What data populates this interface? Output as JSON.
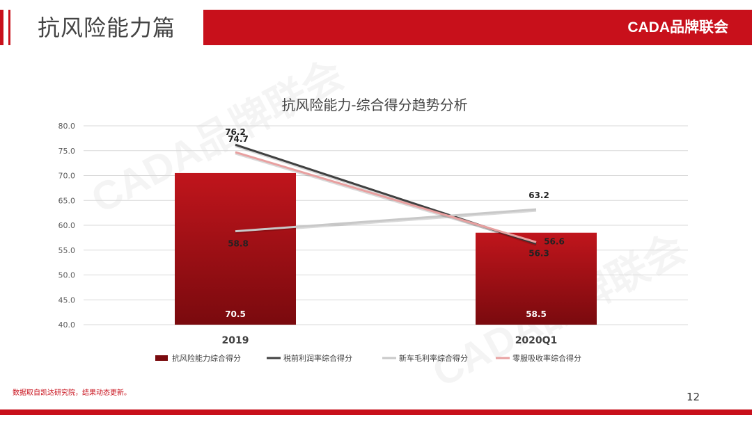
{
  "header": {
    "title": "抗风险能力篇",
    "brand": "CADA品牌联会"
  },
  "watermark": "CADA品牌联会",
  "footer": {
    "note": "数据取自凯达研究院，结果动态更新。",
    "page_number": "12"
  },
  "colors": {
    "brand_red": "#c8101b",
    "bar_top": "#c0151c",
    "bar_bottom": "#7a0a0e",
    "line_pretax": "#404040",
    "line_newcar": "#c8c8c8",
    "line_parts": "#e8a0a0"
  },
  "chart_data": {
    "type": "bar",
    "title": "抗风险能力-综合得分趋势分析",
    "categories": [
      "2019",
      "2020Q1"
    ],
    "ylim": [
      40,
      80
    ],
    "yticks": [
      "40.0",
      "45.0",
      "50.0",
      "55.0",
      "60.0",
      "65.0",
      "70.0",
      "75.0",
      "80.0"
    ],
    "grid": true,
    "legend_position": "bottom",
    "series": [
      {
        "name": "抗风险能力综合得分",
        "kind": "bar",
        "values": [
          70.5,
          58.5
        ],
        "labels": [
          "70.5",
          "58.5"
        ]
      },
      {
        "name": "税前利润率综合得分",
        "kind": "line",
        "values": [
          76.2,
          56.3
        ],
        "labels": [
          "76.2",
          "56.3"
        ]
      },
      {
        "name": "新车毛利率综合得分",
        "kind": "line",
        "values": [
          58.8,
          63.2
        ],
        "labels": [
          "58.8",
          "63.2"
        ]
      },
      {
        "name": "零服吸收率综合得分",
        "kind": "line",
        "values": [
          74.7,
          56.6
        ],
        "labels": [
          "74.7",
          "56.6"
        ]
      }
    ]
  }
}
